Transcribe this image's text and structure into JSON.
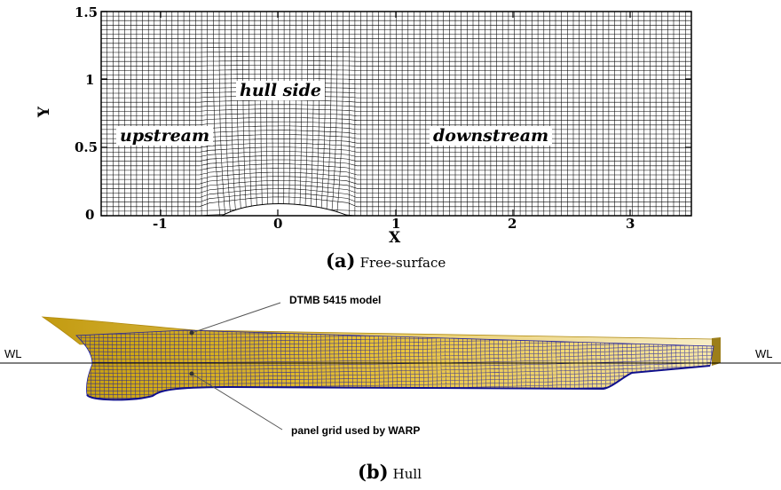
{
  "panel_a": {
    "y_axis_label": "Y",
    "x_axis_label": "X",
    "y_ticks": [
      "1.5",
      "1",
      "0.5",
      "0"
    ],
    "x_ticks": [
      "-1",
      "0",
      "1",
      "2",
      "3"
    ],
    "region_labels": {
      "upstream": "upstream",
      "hull_side": "hull side",
      "downstream": "downstream"
    },
    "caption_letter": "(a)",
    "caption_text": "Free-surface"
  },
  "panel_b": {
    "waterline_left": "WL",
    "waterline_right": "WL",
    "callout_model": "DTMB 5415 model",
    "callout_grid": "panel grid used by WARP",
    "caption_letter": "(b)",
    "caption_text": "Hull"
  },
  "colors": {
    "hull_gold": "#d9b21a",
    "grid_blue": "#1a1aa0",
    "mesh_black": "#000000"
  }
}
